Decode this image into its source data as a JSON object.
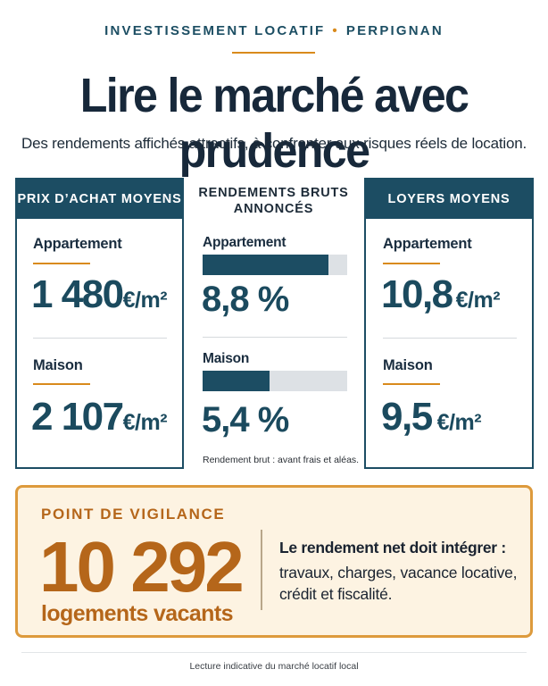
{
  "header": {
    "kicker_left": "INVESTISSEMENT LOCATIF",
    "kicker_sep": "•",
    "kicker_right": "PERPIGNAN",
    "title": "Lire le marché avec prudence",
    "subtitle": "Des rendements affichés attractifs, à confronter aux risques réels de location."
  },
  "prix": {
    "heading": "PRIX D’ACHAT MOYENS",
    "appart_label": "Appartement",
    "appart_value": "1 480",
    "appart_unit": "€/m²",
    "maison_label": "Maison",
    "maison_value": "2 107",
    "maison_unit": "€/m²"
  },
  "rendements": {
    "heading_line1": "RENDEMENTS BRUTS",
    "heading_line2": "ANNONCÉS",
    "appart_label": "Appartement",
    "appart_value": "8,8 %",
    "appart_fill": 0.87,
    "maison_label": "Maison",
    "maison_value": "5,4 %",
    "maison_fill": 0.46,
    "note": "Rendement brut : avant frais et aléas."
  },
  "loyers": {
    "heading": "LOYERS MOYENS",
    "appart_label": "Appartement",
    "appart_value": "10,8",
    "appart_unit": "€/m²",
    "maison_label": "Maison",
    "maison_value": "9,5",
    "maison_unit": "€/m²"
  },
  "vigilance": {
    "title": "POINT DE VIGILANCE",
    "number": "10 292",
    "number_label": "logements vacants",
    "text_head": "Le rendement net doit intégrer :",
    "text_body": "travaux, charges, vacance locative, crédit et fiscalité."
  },
  "footer": {
    "text": "Lecture indicative du marché locatif local"
  },
  "colors": {
    "navy": "#1c4d63",
    "orange": "#d98a1c",
    "vigil_bg": "#fdf3e2"
  }
}
